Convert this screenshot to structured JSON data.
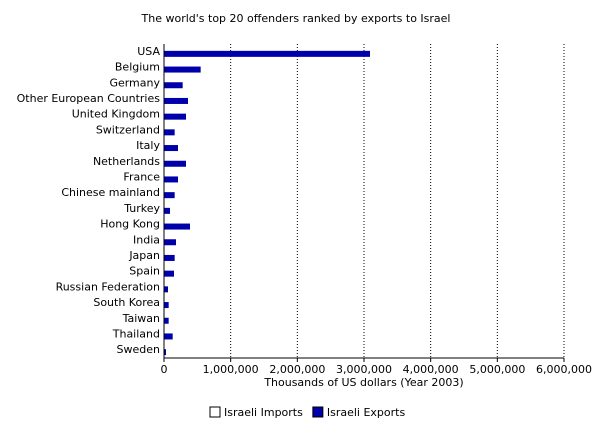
{
  "chart_data": {
    "type": "bar",
    "orientation": "horizontal",
    "title": "The world's top 20 offenders ranked by exports to Israel",
    "x_label": "Thousands of US dollars (Year 2003)",
    "categories": [
      "USA",
      "Belgium",
      "Germany",
      "Other European Countries",
      "United Kingdom",
      "Switzerland",
      "Italy",
      "Netherlands",
      "France",
      "Chinese mainland",
      "Turkey",
      "Hong Kong",
      "India",
      "Japan",
      "Spain",
      "Russian Federation",
      "South Korea",
      "Taiwan",
      "Thailand",
      "Sweden"
    ],
    "series": [
      {
        "name": "Israeli Imports",
        "color": "#ffffff",
        "values": [
          null,
          null,
          null,
          null,
          null,
          null,
          null,
          null,
          null,
          null,
          null,
          null,
          null,
          null,
          null,
          null,
          null,
          null,
          null,
          null
        ]
      },
      {
        "name": "Israeli Exports",
        "color": "#0000aa",
        "values": [
          3090000,
          550000,
          280000,
          360000,
          330000,
          160000,
          210000,
          330000,
          210000,
          160000,
          90000,
          390000,
          180000,
          160000,
          150000,
          60000,
          70000,
          70000,
          130000,
          30000
        ]
      }
    ],
    "xlim": [
      0,
      6000000
    ],
    "xticks": [
      0,
      {
        "value": 1000000,
        "label": "1,000,000"
      },
      {
        "value": 2000000,
        "label": "2,000,000"
      },
      {
        "value": 3000000,
        "label": "3,000,000"
      },
      {
        "value": 4000000,
        "label": "4,000,000"
      },
      {
        "value": 5000000,
        "label": "5,000,000"
      },
      {
        "value": 6000000,
        "label": "6,000,000"
      }
    ],
    "grid": true,
    "legend": "bottom"
  }
}
